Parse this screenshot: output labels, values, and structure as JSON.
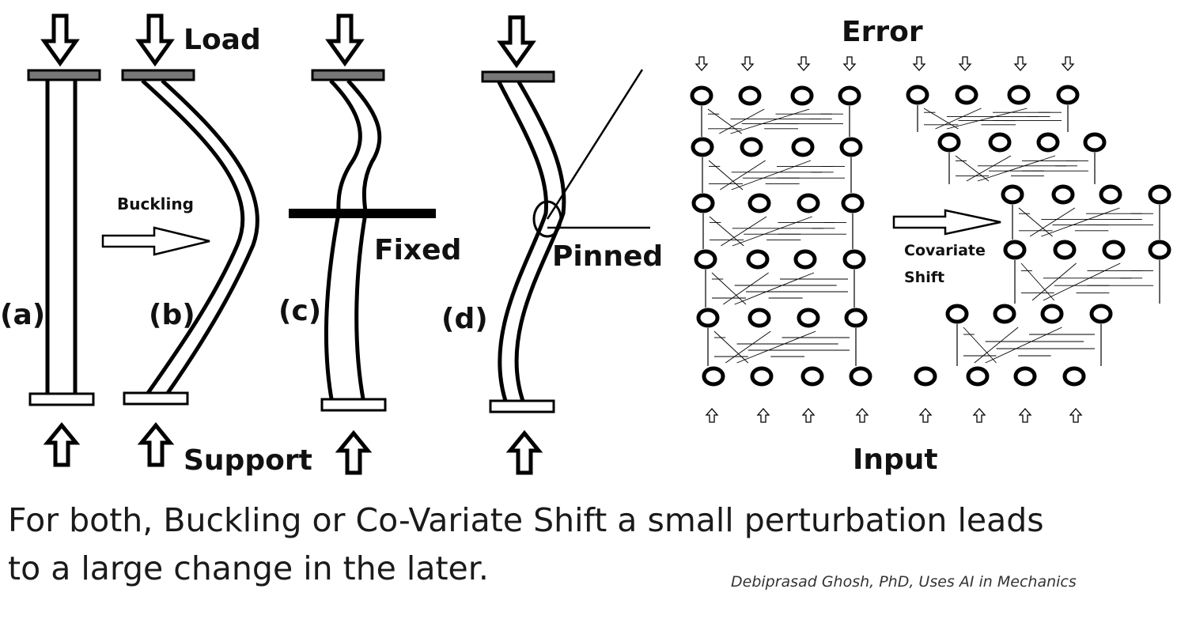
{
  "labels": {
    "load": "Load",
    "support": "Support",
    "buckling": "Buckling",
    "fixed": "Fixed",
    "pinned": "Pinned",
    "a": "(a)",
    "b": "(b)",
    "c": "(c)",
    "d": "(d)",
    "error": "Error",
    "input": "Input",
    "covariate": "Covariate",
    "shift": "Shift"
  },
  "caption": {
    "line1": "For both, Buckling or Co-Variate Shift a small perturbation  leads",
    "line2": "to a large change in the later."
  },
  "credit": "Debiprasad Ghosh, PhD, Uses AI in Mechanics",
  "colors": {
    "ink": "#000000",
    "plate": "#7a7a7a",
    "background": "#ffffff"
  }
}
